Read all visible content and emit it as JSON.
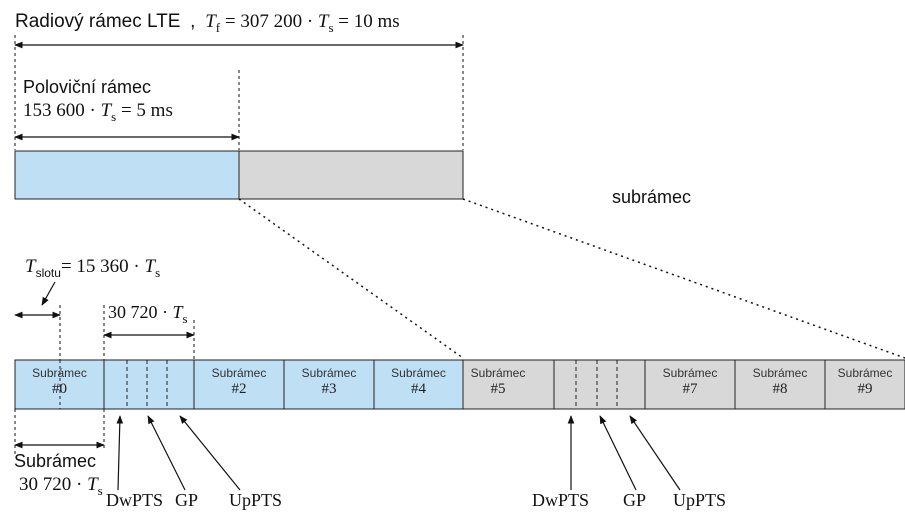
{
  "header": {
    "title": "Radiový rámec LTE",
    "formula_tf_sym": "T",
    "formula_tf_sub": "f",
    "formula_tf_rest": " = 307 200 · ",
    "formula_ts_sym": "T",
    "formula_ts_sub": "s",
    "formula_tf_end": " = 10 ms"
  },
  "half_frame": {
    "label": "Poloviční rámec",
    "formula_a": "153 600 · ",
    "formula_t": "T",
    "formula_sub": "s",
    "formula_b": " = 5 ms"
  },
  "subframe_label": "subrámec",
  "slot": {
    "sym": "T",
    "sub": "slotu",
    "rest": "= 15 360 · ",
    "ts": "T",
    "ts_sub": "s"
  },
  "special_span": {
    "a": "30 720 · ",
    "t": "T",
    "sub": "s"
  },
  "subframes": [
    {
      "line1": "Subrámec",
      "line2": "#0"
    },
    {
      "line1": "Subrámec",
      "line2": "#2"
    },
    {
      "line1": "Subrámec",
      "line2": "#3"
    },
    {
      "line1": "Subrámec",
      "line2": "#4"
    },
    {
      "line1": "Subrámec",
      "line2": "#5"
    },
    {
      "line1": "Subrámec",
      "line2": "#7"
    },
    {
      "line1": "Subrámec",
      "line2": "#8"
    },
    {
      "line1": "Subrámec",
      "line2": "#9"
    }
  ],
  "bottom_subframe": {
    "label": "Subrámec",
    "formula_a": "30 720 · ",
    "formula_t": "T",
    "formula_sub": "s"
  },
  "special_fields": {
    "dwpts": "DwPTS",
    "gp": "GP",
    "uppts": "UpPTS"
  },
  "colors": {
    "first_half": "#bfdff5",
    "second_half": "#d8d8d8",
    "border": "#222222"
  }
}
